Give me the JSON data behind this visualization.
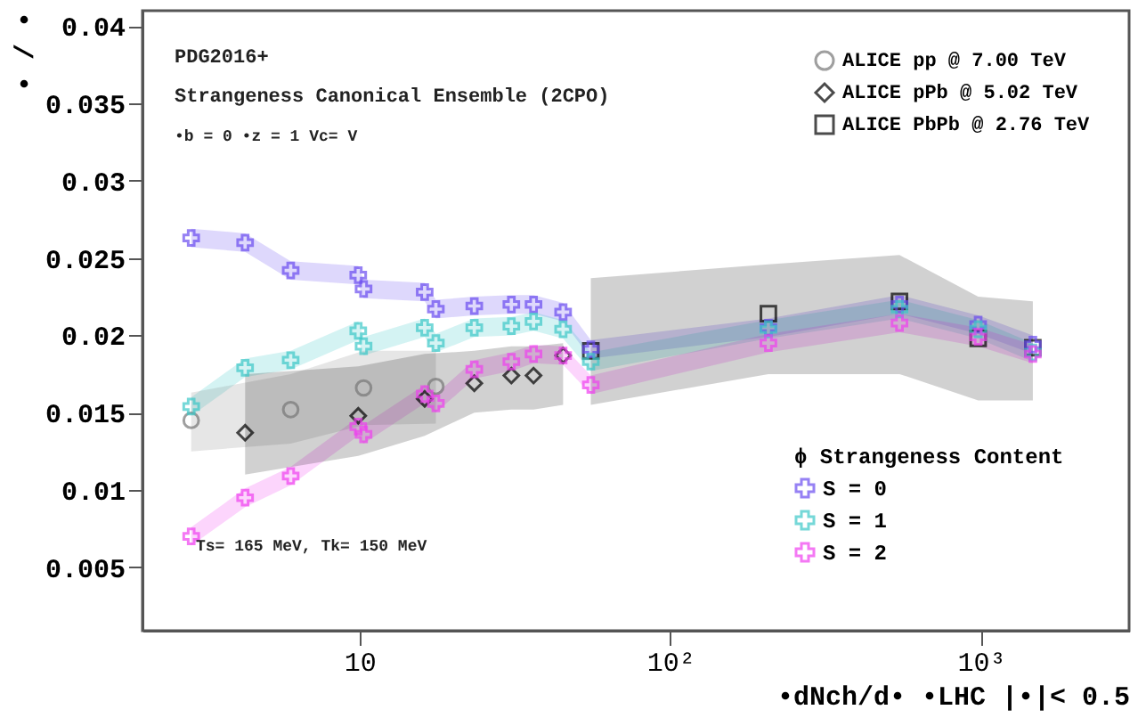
{
  "chart_data": {
    "type": "scatter",
    "xlabel": "•dNch/d• •LHC |•|< 0.5",
    "ylabel": "• / •",
    "legend_title": "ϕ Strangeness Content",
    "annotations": [
      "PDG2016+",
      "Strangeness Canonical Ensemble (2CPO)",
      "•b = 0   •z = 1   Vc= V",
      "Ts= 165 MeV, Tk= 150 MeV"
    ],
    "log": "x",
    "xlim": [
      2,
      3000
    ],
    "ylim": [
      0.0009,
      0.041
    ],
    "xticks": [
      {
        "value": 10,
        "label": "10"
      },
      {
        "value": 100,
        "label": "10²"
      },
      {
        "value": 1000,
        "label": "10³"
      }
    ],
    "yticks": [
      0.005,
      0.01,
      0.015,
      0.02,
      0.025,
      0.03,
      0.035,
      0.04
    ],
    "legend": "right",
    "grid": false,
    "series": [
      {
        "name": "S = 0",
        "color": "#6a4cf0",
        "marker": "cross",
        "x": [
          2.87,
          4.28,
          6.0,
          9.9,
          10.3,
          16.2,
          17.6,
          23.4,
          30.8,
          36.3,
          45.2,
          55.5,
          207,
          547,
          980,
          1470
        ],
        "values": [
          0.0263,
          0.026,
          0.0242,
          0.0239,
          0.023,
          0.0228,
          0.0217,
          0.0219,
          0.022,
          0.022,
          0.0215,
          0.0191,
          0.0205,
          0.022,
          0.0207,
          0.0194
        ],
        "lower": [
          0.0257,
          0.0254,
          0.0236,
          0.0233,
          0.0224,
          0.0222,
          0.0211,
          0.0213,
          0.0214,
          0.0214,
          0.0209,
          0.0185,
          0.0199,
          0.0214,
          0.0201,
          0.0188
        ],
        "upper": [
          0.0269,
          0.0266,
          0.0248,
          0.0245,
          0.0236,
          0.0234,
          0.0223,
          0.0225,
          0.0226,
          0.0226,
          0.0221,
          0.0197,
          0.0211,
          0.0226,
          0.0213,
          0.02
        ]
      },
      {
        "name": "S = 1",
        "color": "#3cc8c8",
        "marker": "cross",
        "x": [
          2.87,
          4.28,
          6.0,
          9.9,
          10.3,
          16.2,
          17.6,
          23.4,
          30.8,
          36.3,
          45.2,
          55.5,
          207,
          547,
          980,
          1470
        ],
        "values": [
          0.0154,
          0.0179,
          0.0184,
          0.0203,
          0.0193,
          0.0205,
          0.0195,
          0.0205,
          0.0206,
          0.0209,
          0.0204,
          0.0183,
          0.0204,
          0.0217,
          0.0204,
          0.0189
        ],
        "lower": [
          0.0148,
          0.0173,
          0.0178,
          0.0197,
          0.0187,
          0.0199,
          0.0189,
          0.0199,
          0.02,
          0.0203,
          0.0198,
          0.0177,
          0.0198,
          0.0211,
          0.0198,
          0.0183
        ],
        "upper": [
          0.016,
          0.0185,
          0.019,
          0.0209,
          0.0199,
          0.0211,
          0.0201,
          0.0211,
          0.0212,
          0.0215,
          0.021,
          0.0189,
          0.021,
          0.0223,
          0.021,
          0.0195
        ]
      },
      {
        "name": "S = 2",
        "color": "#f040f0",
        "marker": "cross",
        "x": [
          2.87,
          4.28,
          6.0,
          9.9,
          10.3,
          16.2,
          17.6,
          23.4,
          30.8,
          36.3,
          45.2,
          55.5,
          207,
          547,
          980,
          1470
        ],
        "values": [
          0.007,
          0.0095,
          0.0109,
          0.0141,
          0.0136,
          0.0162,
          0.0156,
          0.0178,
          0.0183,
          0.0188,
          0.0187,
          0.0168,
          0.0195,
          0.0208,
          0.0199,
          0.0188
        ],
        "lower": [
          0.0064,
          0.0089,
          0.0103,
          0.0135,
          0.013,
          0.0156,
          0.015,
          0.0172,
          0.0177,
          0.0182,
          0.0181,
          0.0162,
          0.0189,
          0.0202,
          0.0193,
          0.0182
        ],
        "upper": [
          0.0076,
          0.0101,
          0.0115,
          0.0147,
          0.0142,
          0.0168,
          0.0162,
          0.0184,
          0.0189,
          0.0194,
          0.0193,
          0.0174,
          0.0201,
          0.0214,
          0.0205,
          0.0194
        ]
      },
      {
        "name": "ALICE pp   @ 7.00 TeV",
        "color": "#777777",
        "marker": "circle",
        "x": [
          2.87,
          6.0,
          10.3,
          17.6
        ],
        "values": [
          0.0145,
          0.0152,
          0.0166,
          0.0167
        ],
        "lower": [
          0.0125,
          0.013,
          0.0142,
          0.0143
        ],
        "upper": [
          0.0163,
          0.0175,
          0.019,
          0.019
        ]
      },
      {
        "name": "ALICE pPb  @ 5.02 TeV",
        "color": "#000000",
        "marker": "diamond",
        "x": [
          4.28,
          9.9,
          16.2,
          23.4,
          30.8,
          36.3,
          45.2
        ],
        "values": [
          0.0137,
          0.0148,
          0.0159,
          0.0169,
          0.0174,
          0.0174,
          0.0187
        ],
        "lower": [
          0.011,
          0.0122,
          0.0135,
          0.015,
          0.0152,
          0.0152,
          0.0155
        ],
        "upper": [
          0.0175,
          0.018,
          0.0188,
          0.019,
          0.0193,
          0.0193,
          0.0195
        ]
      },
      {
        "name": "ALICE PbPb @ 2.76 TeV",
        "color": "#000000",
        "marker": "square",
        "x": [
          55.5,
          207,
          547,
          980,
          1470
        ],
        "values": [
          0.019,
          0.0214,
          0.0222,
          0.0198,
          0.0192
        ],
        "lower": [
          0.0155,
          0.0175,
          0.0175,
          0.0158,
          0.0158
        ],
        "upper": [
          0.0237,
          0.0246,
          0.0252,
          0.0225,
          0.0222
        ]
      }
    ]
  }
}
